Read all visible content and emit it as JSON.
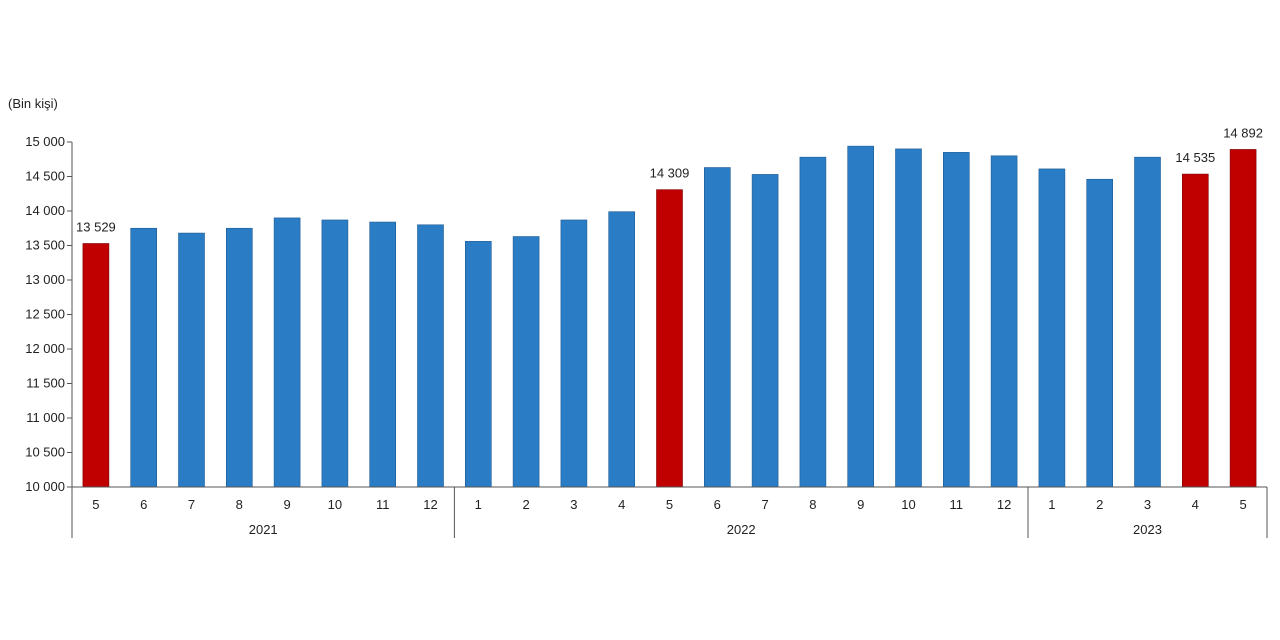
{
  "chart_data": {
    "type": "bar",
    "ylabel": "(Bin kişi)",
    "ylim": [
      10000,
      15000
    ],
    "yticks": [
      10000,
      10500,
      11000,
      11500,
      12000,
      12500,
      13000,
      13500,
      14000,
      14500,
      15000
    ],
    "ytick_labels": [
      "10 000",
      "10 500",
      "11 000",
      "11 500",
      "12 000",
      "12 500",
      "13 000",
      "13 500",
      "14 000",
      "14 500",
      "15 000"
    ],
    "grid": false,
    "legend": "none",
    "colors": {
      "default": "#2a7dc4",
      "highlight": "#c00000"
    },
    "years": [
      {
        "label": "2021",
        "count": 8
      },
      {
        "label": "2022",
        "count": 12
      },
      {
        "label": "2023",
        "count": 5
      }
    ],
    "categories": [
      "5",
      "6",
      "7",
      "8",
      "9",
      "10",
      "11",
      "12",
      "1",
      "2",
      "3",
      "4",
      "5",
      "6",
      "7",
      "8",
      "9",
      "10",
      "11",
      "12",
      "1",
      "2",
      "3",
      "4",
      "5"
    ],
    "values": [
      13529,
      13750,
      13680,
      13750,
      13900,
      13870,
      13840,
      13800,
      13560,
      13630,
      13870,
      13990,
      14309,
      14630,
      14530,
      14780,
      14940,
      14900,
      14850,
      14800,
      14610,
      14460,
      14780,
      14535,
      14892
    ],
    "highlighted": [
      0,
      12,
      23,
      24
    ],
    "data_labels": [
      {
        "index": 0,
        "text": "13 529"
      },
      {
        "index": 12,
        "text": "14 309"
      },
      {
        "index": 23,
        "text": "14 535"
      },
      {
        "index": 24,
        "text": "14 892"
      }
    ]
  }
}
